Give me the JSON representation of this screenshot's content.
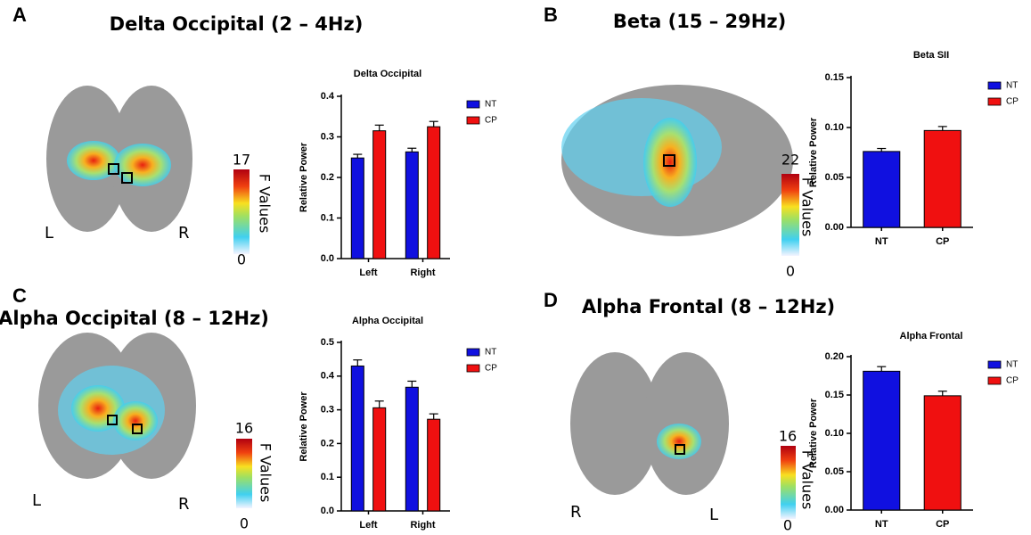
{
  "panels": [
    {
      "letter": "A",
      "title": "Delta Occipital (2 – 4Hz)",
      "colorbar_max": 17,
      "colorbar_min": 0,
      "colorbar_label": "F Values",
      "sides": [
        "L",
        "R"
      ]
    },
    {
      "letter": "B",
      "title": "Beta (15 – 29Hz)",
      "colorbar_max": 22,
      "colorbar_min": 0,
      "colorbar_label": "F Values"
    },
    {
      "letter": "C",
      "title": "Alpha Occipital (8 – 12Hz)",
      "colorbar_max": 16,
      "colorbar_min": 0,
      "colorbar_label": "F Values",
      "sides": [
        "L",
        "R"
      ]
    },
    {
      "letter": "D",
      "title": "Alpha Frontal (8 – 12Hz)",
      "colorbar_max": 16,
      "colorbar_min": 0,
      "colorbar_label": "F Values",
      "sides": [
        "R",
        "L"
      ]
    }
  ],
  "chart_data": [
    {
      "type": "bar",
      "title": "Delta Occipital",
      "ylabel": "Relative Power",
      "categories": [
        "Left",
        "Right"
      ],
      "series": [
        {
          "name": "NT",
          "color": "#1010e0",
          "values": [
            0.248,
            0.263
          ],
          "errors": [
            0.009,
            0.009
          ]
        },
        {
          "name": "CP",
          "color": "#f01010",
          "values": [
            0.315,
            0.325
          ],
          "errors": [
            0.014,
            0.013
          ]
        }
      ],
      "ylim": [
        0,
        0.4
      ],
      "yticks": [
        {
          "value": 0,
          "label": "0.0"
        },
        0.1,
        0.2,
        0.3,
        0.4
      ]
    },
    {
      "type": "bar",
      "title": "Beta SII",
      "ylabel": "Relative Power",
      "categories": [
        "NT",
        "CP"
      ],
      "values": [
        0.076,
        0.097
      ],
      "errors": [
        0.003,
        0.004
      ],
      "colors": [
        "#1010e0",
        "#f01010"
      ],
      "ylim": [
        0,
        0.15
      ],
      "yticks": [
        {
          "value": 0,
          "label": "0.00"
        },
        0.05,
        {
          "value": 0.1,
          "label": "0.10"
        },
        0.15
      ]
    },
    {
      "type": "bar",
      "title": "Alpha Occipital",
      "ylabel": "Relative Power",
      "categories": [
        "Left",
        "Right"
      ],
      "series": [
        {
          "name": "NT",
          "color": "#1010e0",
          "values": [
            0.43,
            0.367
          ],
          "errors": [
            0.018,
            0.018
          ]
        },
        {
          "name": "CP",
          "color": "#f01010",
          "values": [
            0.306,
            0.272
          ],
          "errors": [
            0.02,
            0.016
          ]
        }
      ],
      "ylim": [
        0,
        0.5
      ],
      "yticks": [
        {
          "value": 0,
          "label": "0.0"
        },
        0.1,
        0.2,
        0.3,
        0.4,
        0.5
      ]
    },
    {
      "type": "bar",
      "title": "Alpha Frontal",
      "ylabel": "Relative Power",
      "categories": [
        "NT",
        "CP"
      ],
      "values": [
        0.181,
        0.149
      ],
      "errors": [
        0.006,
        0.006
      ],
      "colors": [
        "#1010e0",
        "#f01010"
      ],
      "ylim": [
        0,
        0.2
      ],
      "yticks": [
        {
          "value": 0,
          "label": "0.00"
        },
        0.05,
        {
          "value": 0.1,
          "label": "0.10"
        },
        0.15,
        {
          "value": 0.2,
          "label": "0.20"
        }
      ]
    }
  ]
}
